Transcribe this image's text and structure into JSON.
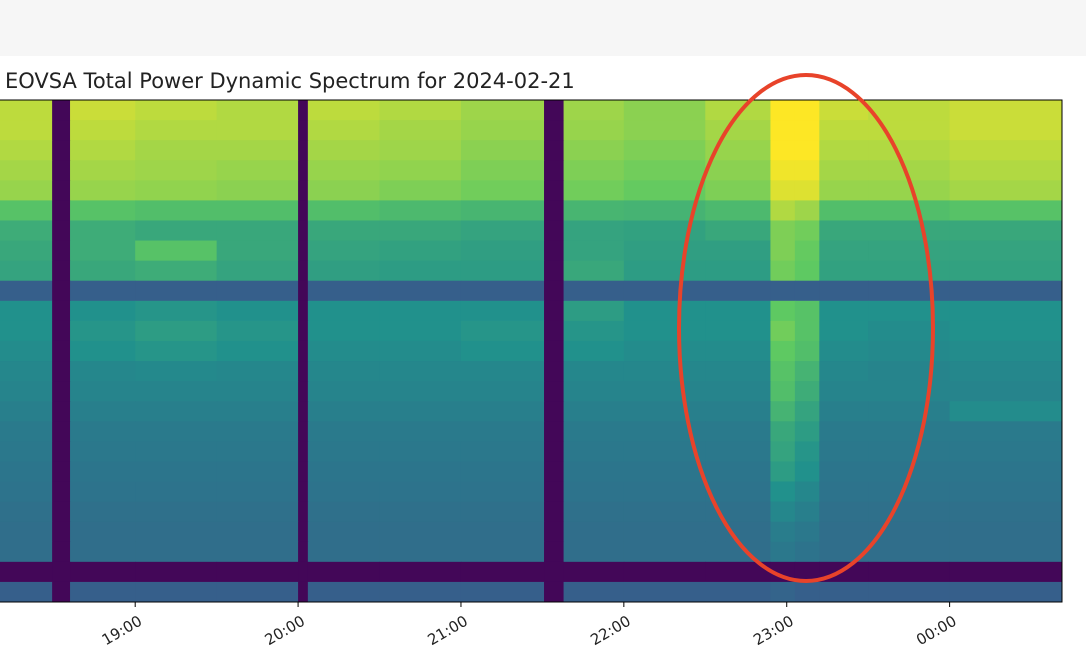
{
  "chart_data": {
    "type": "heatmap",
    "title": "EOVSA Total Power Dynamic Spectrum for 2024-02-21",
    "colormap": "viridis",
    "xlim": [
      18.17,
      24.69
    ],
    "xticks": [
      {
        "value": 19,
        "label": "19:00"
      },
      {
        "value": 20,
        "label": "20:00"
      },
      {
        "value": 21,
        "label": "21:00"
      },
      {
        "value": 22,
        "label": "22:00"
      },
      {
        "value": 23,
        "label": "23:00"
      },
      {
        "value": 24,
        "label": "00:00"
      }
    ],
    "x_edges": [
      18.17,
      18.49,
      18.6,
      19.0,
      19.5,
      20.0,
      20.06,
      20.5,
      21.0,
      21.51,
      21.63,
      22.0,
      22.5,
      22.9,
      23.05,
      23.2,
      23.5,
      24.0,
      24.69
    ],
    "z": [
      [
        0.9,
        0.02,
        0.92,
        0.9,
        0.88,
        0.02,
        0.9,
        0.88,
        0.85,
        0.02,
        0.85,
        0.82,
        0.88,
        1.0,
        1.0,
        0.92,
        0.9,
        0.92
      ],
      [
        0.9,
        0.02,
        0.9,
        0.88,
        0.88,
        0.02,
        0.88,
        0.86,
        0.84,
        0.02,
        0.84,
        0.82,
        0.86,
        1.0,
        1.0,
        0.9,
        0.9,
        0.92
      ],
      [
        0.88,
        0.02,
        0.88,
        0.86,
        0.86,
        0.02,
        0.86,
        0.85,
        0.82,
        0.02,
        0.82,
        0.8,
        0.84,
        1.0,
        1.0,
        0.88,
        0.88,
        0.9
      ],
      [
        0.86,
        0.02,
        0.86,
        0.85,
        0.84,
        0.02,
        0.84,
        0.83,
        0.8,
        0.02,
        0.8,
        0.78,
        0.82,
        0.98,
        0.98,
        0.86,
        0.86,
        0.88
      ],
      [
        0.84,
        0.02,
        0.84,
        0.83,
        0.82,
        0.02,
        0.82,
        0.8,
        0.78,
        0.02,
        0.78,
        0.76,
        0.8,
        0.95,
        0.95,
        0.84,
        0.84,
        0.86
      ],
      [
        0.72,
        0.02,
        0.72,
        0.7,
        0.7,
        0.02,
        0.7,
        0.68,
        0.66,
        0.02,
        0.66,
        0.65,
        0.68,
        0.88,
        0.85,
        0.7,
        0.7,
        0.72
      ],
      [
        0.62,
        0.02,
        0.62,
        0.6,
        0.6,
        0.02,
        0.6,
        0.6,
        0.58,
        0.02,
        0.58,
        0.57,
        0.6,
        0.8,
        0.78,
        0.6,
        0.6,
        0.6
      ],
      [
        0.6,
        0.02,
        0.62,
        0.72,
        0.6,
        0.02,
        0.58,
        0.57,
        0.56,
        0.02,
        0.58,
        0.56,
        0.56,
        0.8,
        0.76,
        0.58,
        0.58,
        0.58
      ],
      [
        0.58,
        0.02,
        0.6,
        0.62,
        0.58,
        0.02,
        0.56,
        0.55,
        0.55,
        0.02,
        0.6,
        0.55,
        0.55,
        0.78,
        0.75,
        0.57,
        0.57,
        0.57
      ],
      [
        0.3,
        0.02,
        0.3,
        0.3,
        0.3,
        0.02,
        0.3,
        0.3,
        0.3,
        0.02,
        0.3,
        0.3,
        0.3,
        0.3,
        0.3,
        0.3,
        0.3,
        0.3
      ],
      [
        0.5,
        0.02,
        0.5,
        0.52,
        0.5,
        0.02,
        0.5,
        0.5,
        0.5,
        0.02,
        0.55,
        0.5,
        0.5,
        0.75,
        0.72,
        0.5,
        0.5,
        0.5
      ],
      [
        0.5,
        0.02,
        0.52,
        0.55,
        0.52,
        0.02,
        0.5,
        0.5,
        0.52,
        0.02,
        0.52,
        0.5,
        0.5,
        0.78,
        0.72,
        0.5,
        0.48,
        0.5
      ],
      [
        0.48,
        0.02,
        0.5,
        0.52,
        0.5,
        0.02,
        0.48,
        0.48,
        0.5,
        0.02,
        0.5,
        0.48,
        0.48,
        0.75,
        0.7,
        0.48,
        0.47,
        0.48
      ],
      [
        0.46,
        0.02,
        0.46,
        0.47,
        0.46,
        0.02,
        0.46,
        0.46,
        0.46,
        0.02,
        0.46,
        0.46,
        0.46,
        0.72,
        0.65,
        0.46,
        0.45,
        0.46
      ],
      [
        0.45,
        0.02,
        0.45,
        0.45,
        0.45,
        0.02,
        0.45,
        0.45,
        0.45,
        0.02,
        0.45,
        0.45,
        0.45,
        0.7,
        0.62,
        0.45,
        0.45,
        0.45
      ],
      [
        0.43,
        0.02,
        0.43,
        0.43,
        0.43,
        0.02,
        0.43,
        0.43,
        0.43,
        0.02,
        0.43,
        0.43,
        0.43,
        0.65,
        0.58,
        0.43,
        0.43,
        0.48
      ],
      [
        0.41,
        0.02,
        0.41,
        0.41,
        0.41,
        0.02,
        0.41,
        0.41,
        0.41,
        0.02,
        0.41,
        0.41,
        0.41,
        0.6,
        0.55,
        0.41,
        0.41,
        0.41
      ],
      [
        0.4,
        0.02,
        0.4,
        0.4,
        0.4,
        0.02,
        0.4,
        0.4,
        0.4,
        0.02,
        0.4,
        0.4,
        0.4,
        0.58,
        0.52,
        0.4,
        0.4,
        0.4
      ],
      [
        0.39,
        0.02,
        0.39,
        0.39,
        0.39,
        0.02,
        0.39,
        0.39,
        0.39,
        0.02,
        0.39,
        0.39,
        0.39,
        0.55,
        0.5,
        0.39,
        0.39,
        0.39
      ],
      [
        0.38,
        0.02,
        0.38,
        0.38,
        0.38,
        0.02,
        0.38,
        0.38,
        0.38,
        0.02,
        0.38,
        0.38,
        0.38,
        0.5,
        0.46,
        0.38,
        0.38,
        0.38
      ],
      [
        0.37,
        0.02,
        0.37,
        0.37,
        0.37,
        0.02,
        0.37,
        0.37,
        0.37,
        0.02,
        0.37,
        0.37,
        0.37,
        0.46,
        0.43,
        0.37,
        0.37,
        0.37
      ],
      [
        0.36,
        0.02,
        0.36,
        0.36,
        0.36,
        0.02,
        0.36,
        0.36,
        0.36,
        0.02,
        0.36,
        0.36,
        0.36,
        0.42,
        0.4,
        0.36,
        0.36,
        0.36
      ],
      [
        0.36,
        0.02,
        0.36,
        0.36,
        0.36,
        0.02,
        0.36,
        0.36,
        0.36,
        0.02,
        0.36,
        0.36,
        0.36,
        0.4,
        0.38,
        0.36,
        0.36,
        0.36
      ],
      [
        0.02,
        0.02,
        0.02,
        0.02,
        0.02,
        0.02,
        0.02,
        0.02,
        0.02,
        0.02,
        0.02,
        0.02,
        0.02,
        0.02,
        0.02,
        0.02,
        0.02,
        0.02
      ],
      [
        0.3,
        0.02,
        0.3,
        0.3,
        0.3,
        0.02,
        0.3,
        0.3,
        0.3,
        0.02,
        0.3,
        0.3,
        0.3,
        0.32,
        0.3,
        0.3,
        0.3,
        0.3
      ]
    ]
  }
}
